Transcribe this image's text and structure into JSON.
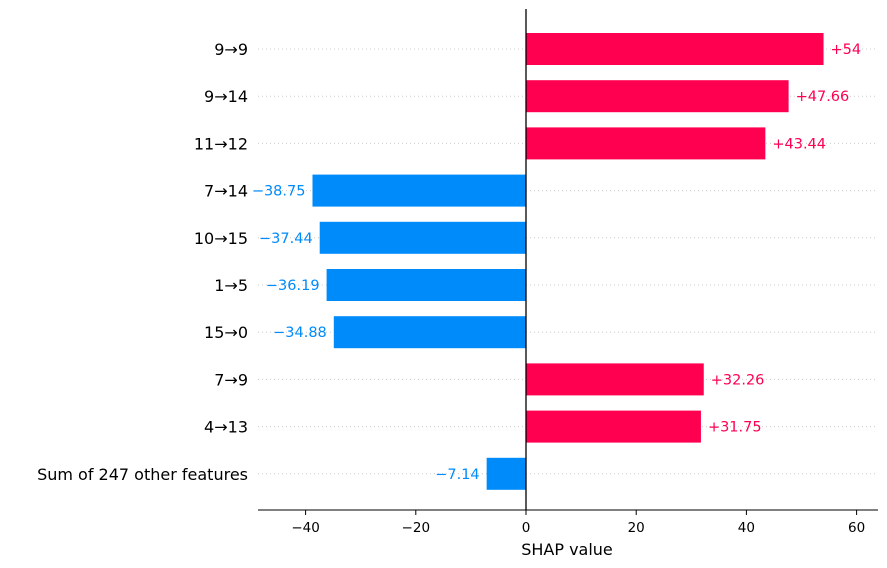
{
  "chart_data": {
    "type": "bar",
    "orientation": "horizontal",
    "title": "",
    "xlabel": "SHAP value",
    "ylabel": "",
    "xlim": [
      -48.5,
      64
    ],
    "xticks": [
      -40,
      -20,
      0,
      20,
      40,
      60
    ],
    "xtick_labels": [
      "−40",
      "−20",
      "0",
      "20",
      "40",
      "60"
    ],
    "grid": "dotted horizontal guide lines per row",
    "categories": [
      "9→9",
      "9→14",
      "11→12",
      "7→14",
      "10→15",
      "1→5",
      "15→0",
      "7→9",
      "4→13",
      "Sum of 247 other features"
    ],
    "values": [
      54,
      47.66,
      43.44,
      -38.75,
      -37.44,
      -36.19,
      -34.88,
      32.26,
      31.75,
      -7.14
    ],
    "value_labels": [
      "+54",
      "+47.66",
      "+43.44",
      "−38.75",
      "−37.44",
      "−36.19",
      "−34.88",
      "+32.26",
      "+31.75",
      "−7.14"
    ],
    "colors": {
      "positive": "#ff0051",
      "negative": "#008bfb",
      "axis": "#000000",
      "grid": "#cccccc"
    }
  }
}
